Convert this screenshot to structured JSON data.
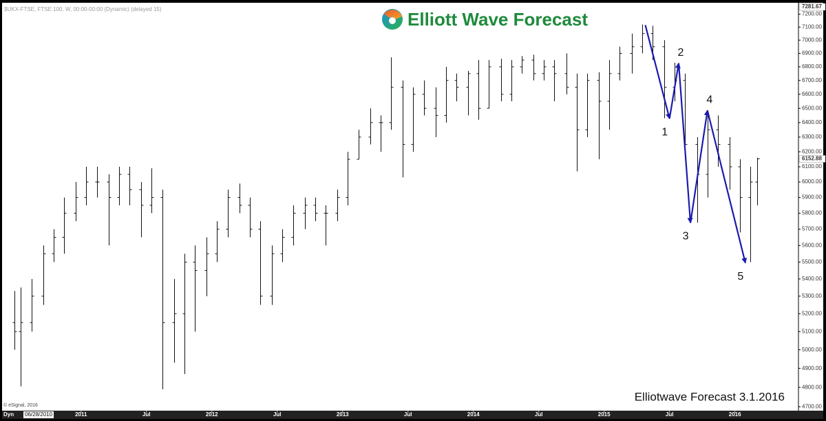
{
  "chart_data": {
    "type": "ohlc",
    "header": "$UKX-FTSE, FTSE 100, W, 00:00-00:00 (Dynamic) (delayed 15)",
    "brand": "Elliott Wave Forecast",
    "footer": "Elliotwave Forecast 3.1.2016",
    "copyright": "© eSignal, 2016",
    "mode_label": "Dyn",
    "start_label": "06/28/2010",
    "high_label": 7281.67,
    "last_label": 6152.88,
    "log_scale": true,
    "color": "#111111",
    "x": [
      2010.49,
      2010.54,
      2010.62,
      2010.71,
      2010.79,
      2010.87,
      2010.96,
      2011.04,
      2011.12,
      2011.21,
      2011.29,
      2011.37,
      2011.46,
      2011.54,
      2011.62,
      2011.71,
      2011.79,
      2011.87,
      2011.96,
      2012.04,
      2012.12,
      2012.21,
      2012.29,
      2012.37,
      2012.46,
      2012.54,
      2012.62,
      2012.71,
      2012.79,
      2012.87,
      2012.96,
      2013.04,
      2013.12,
      2013.21,
      2013.29,
      2013.37,
      2013.46,
      2013.54,
      2013.62,
      2013.71,
      2013.79,
      2013.87,
      2013.96,
      2014.04,
      2014.12,
      2014.21,
      2014.29,
      2014.37,
      2014.46,
      2014.54,
      2014.62,
      2014.71,
      2014.79,
      2014.87,
      2014.96,
      2015.04,
      2015.12,
      2015.21,
      2015.29,
      2015.37,
      2015.46,
      2015.54,
      2015.62,
      2015.71,
      2015.79,
      2015.87,
      2015.96,
      2016.04,
      2016.12,
      2016.17
    ],
    "open": [
      5150,
      5100,
      5150,
      5300,
      5550,
      5650,
      5800,
      5900,
      6000,
      6000,
      5900,
      6050,
      5950,
      5850,
      5900,
      5150,
      5200,
      5500,
      5450,
      5550,
      5700,
      5900,
      5850,
      5700,
      5300,
      5550,
      5650,
      5800,
      5850,
      5800,
      5800,
      5900,
      6150,
      6300,
      6400,
      6400,
      6650,
      6250,
      6600,
      6500,
      6450,
      6700,
      6650,
      6750,
      6500,
      6800,
      6600,
      6800,
      6850,
      6750,
      6800,
      6750,
      6650,
      6350,
      6700,
      6550,
      6750,
      6900,
      6950,
      7050,
      6950,
      6650,
      6700,
      6250,
      6050,
      6350,
      6250,
      6100,
      5900,
      6000
    ],
    "high": [
      5330,
      5350,
      5400,
      5600,
      5700,
      5900,
      6000,
      6100,
      6100,
      6050,
      6100,
      6100,
      6000,
      6090,
      5950,
      5400,
      5550,
      5600,
      5650,
      5750,
      5950,
      5990,
      5900,
      5750,
      5600,
      5700,
      5850,
      5900,
      5900,
      5850,
      5950,
      6200,
      6350,
      6500,
      6450,
      6870,
      6700,
      6650,
      6700,
      6650,
      6800,
      6750,
      6770,
      6850,
      6850,
      6860,
      6850,
      6880,
      6890,
      6850,
      6850,
      6900,
      6750,
      6750,
      6760,
      6850,
      6950,
      7050,
      7120,
      7110,
      7000,
      6830,
      6750,
      6300,
      6485,
      6450,
      6300,
      6150,
      6100,
      6160
    ],
    "low": [
      5000,
      4805,
      5100,
      5250,
      5500,
      5550,
      5750,
      5850,
      5900,
      5600,
      5850,
      5850,
      5650,
      5800,
      4790,
      4930,
      4870,
      5100,
      5300,
      5500,
      5650,
      5800,
      5650,
      5250,
      5250,
      5500,
      5600,
      5700,
      5750,
      5600,
      5750,
      5850,
      6150,
      6250,
      6200,
      6350,
      6030,
      6200,
      6450,
      6300,
      6400,
      6550,
      6450,
      6420,
      6500,
      6550,
      6550,
      6750,
      6700,
      6700,
      6550,
      6600,
      6070,
      6300,
      6150,
      6350,
      6700,
      6750,
      6900,
      6850,
      6430,
      6550,
      6150,
      5740,
      5900,
      6100,
      5950,
      5680,
      5500,
      5850
    ],
    "close": [
      5100,
      5150,
      5300,
      5550,
      5650,
      5800,
      5900,
      6000,
      6000,
      5900,
      6050,
      5950,
      5850,
      5900,
      5150,
      5200,
      5500,
      5450,
      5550,
      5700,
      5900,
      5850,
      5700,
      5300,
      5550,
      5650,
      5800,
      5850,
      5800,
      5800,
      5900,
      6150,
      6300,
      6400,
      6400,
      6650,
      6250,
      6600,
      6500,
      6450,
      6700,
      6650,
      6750,
      6500,
      6800,
      6600,
      6800,
      6850,
      6750,
      6800,
      6750,
      6650,
      6350,
      6700,
      6550,
      6750,
      6900,
      6950,
      7050,
      6950,
      6650,
      6700,
      6250,
      6050,
      6350,
      6250,
      6100,
      5900,
      6000,
      6152.88
    ],
    "wave": {
      "color": "#1a1ab0",
      "labels": [
        null,
        "1",
        "2",
        "3",
        "4",
        "5"
      ],
      "x": [
        2015.315,
        2015.5,
        2015.57,
        2015.66,
        2015.79,
        2016.08
      ],
      "values": [
        7115,
        6428,
        6826,
        5740,
        6485,
        5495
      ]
    },
    "xlim": [
      2010.396,
      2016.486
    ],
    "xticks": [
      {
        "value": 2011,
        "label": "2011"
      },
      {
        "value": 2011.5,
        "label": "Jul"
      },
      {
        "value": 2012,
        "label": "2012"
      },
      {
        "value": 2012.5,
        "label": "Jul"
      },
      {
        "value": 2013,
        "label": "2013"
      },
      {
        "value": 2013.5,
        "label": "Jul"
      },
      {
        "value": 2014,
        "label": "2014"
      },
      {
        "value": 2014.5,
        "label": "Jul"
      },
      {
        "value": 2015,
        "label": "2015"
      },
      {
        "value": 2015.5,
        "label": "Jul"
      },
      {
        "value": 2016,
        "label": "2016"
      }
    ],
    "ylim": [
      4680,
      7290
    ],
    "yticks": [
      {
        "value": 4700,
        "label": "4700.00"
      },
      {
        "value": 4800,
        "label": "4800.00"
      },
      {
        "value": 4900,
        "label": "4900.00"
      },
      {
        "value": 5000,
        "label": "5000.00"
      },
      {
        "value": 5100,
        "label": "5100.00"
      },
      {
        "value": 5200,
        "label": "5200.00"
      },
      {
        "value": 5300,
        "label": "5300.00"
      },
      {
        "value": 5400,
        "label": "5400.00"
      },
      {
        "value": 5500,
        "label": "5500.00"
      },
      {
        "value": 5600,
        "label": "5600.00"
      },
      {
        "value": 5700,
        "label": "5700.00"
      },
      {
        "value": 5800,
        "label": "5800.00"
      },
      {
        "value": 5900,
        "label": "5900.00"
      },
      {
        "value": 6000,
        "label": "6000.00"
      },
      {
        "value": 6100,
        "label": "6100.00"
      },
      {
        "value": 6200,
        "label": "6200.00"
      },
      {
        "value": 6300,
        "label": "6300.00"
      },
      {
        "value": 6400,
        "label": "6400.00"
      },
      {
        "value": 6500,
        "label": "6500.00"
      },
      {
        "value": 6600,
        "label": "6600.00"
      },
      {
        "value": 6700,
        "label": "6700.00"
      },
      {
        "value": 6800,
        "label": "6800.00"
      },
      {
        "value": 6900,
        "label": "6900.00"
      },
      {
        "value": 7000,
        "label": "7000.00"
      },
      {
        "value": 7100,
        "label": "7100.00"
      },
      {
        "value": 7200,
        "label": "7200.00"
      }
    ]
  }
}
